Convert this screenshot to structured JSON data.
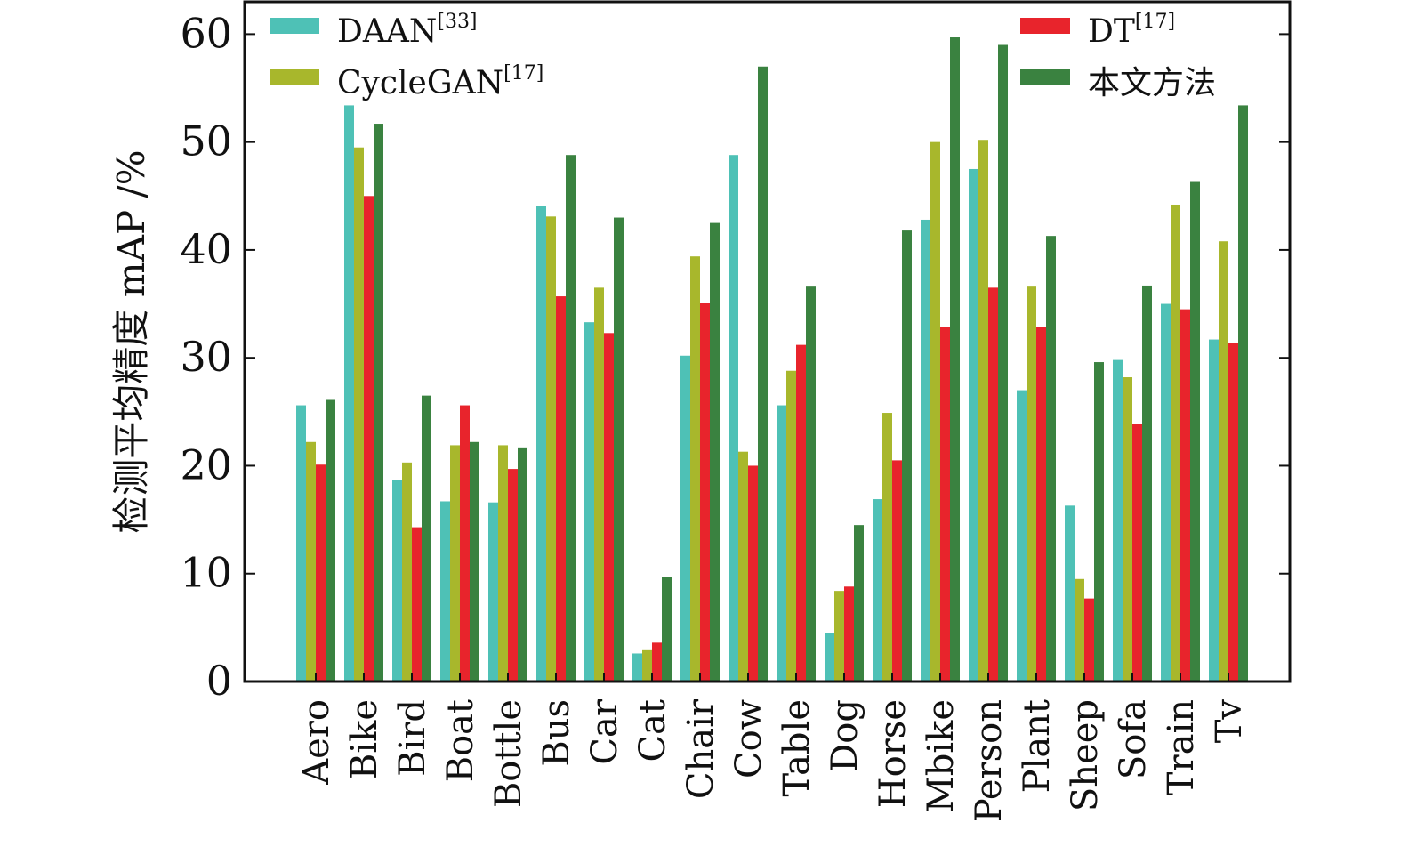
{
  "chart_data": {
    "type": "bar",
    "ylabel": "检测平均精度 mAP /%",
    "ylim": [
      0,
      63
    ],
    "yticks": [
      "0",
      "10",
      "20",
      "30",
      "40",
      "50",
      "60"
    ],
    "grid": false,
    "legend_position": "top",
    "categories": [
      "Aero",
      "Bike",
      "Bird",
      "Boat",
      "Bottle",
      "Bus",
      "Car",
      "Cat",
      "Chair",
      "Cow",
      "Table",
      "Dog",
      "Horse",
      "Mbike",
      "Person",
      "Plant",
      "Sheep",
      "Sofa",
      "Train",
      "Tv"
    ],
    "series": [
      {
        "name": "DAAN",
        "sup": "[33]",
        "color": "#4ec1b6",
        "values": [
          25.6,
          53.4,
          18.7,
          16.7,
          16.6,
          44.1,
          33.3,
          2.6,
          30.2,
          48.8,
          25.6,
          4.5,
          16.9,
          42.8,
          47.5,
          27.0,
          16.3,
          29.8,
          35.0,
          31.7
        ]
      },
      {
        "name": "CycleGAN",
        "sup": "[17]",
        "color": "#a8b72c",
        "values": [
          22.2,
          49.5,
          20.3,
          21.9,
          21.9,
          43.1,
          36.5,
          2.9,
          39.4,
          21.3,
          28.8,
          8.4,
          24.9,
          50.0,
          50.2,
          36.6,
          9.5,
          28.2,
          44.2,
          40.8
        ]
      },
      {
        "name": "DT",
        "sup": "[17]",
        "color": "#e8242c",
        "values": [
          20.1,
          45.0,
          14.3,
          25.6,
          19.7,
          35.7,
          32.3,
          3.6,
          35.1,
          20.0,
          31.2,
          8.8,
          20.5,
          32.9,
          36.5,
          32.9,
          7.7,
          23.9,
          34.5,
          31.4
        ]
      },
      {
        "name": "本文方法",
        "sup": "",
        "color": "#3a8240",
        "values": [
          26.1,
          51.7,
          26.5,
          22.2,
          21.7,
          48.8,
          43.0,
          9.7,
          42.5,
          57.0,
          36.6,
          14.5,
          41.8,
          59.7,
          59.0,
          41.3,
          29.6,
          36.7,
          46.3,
          53.4
        ]
      }
    ]
  }
}
